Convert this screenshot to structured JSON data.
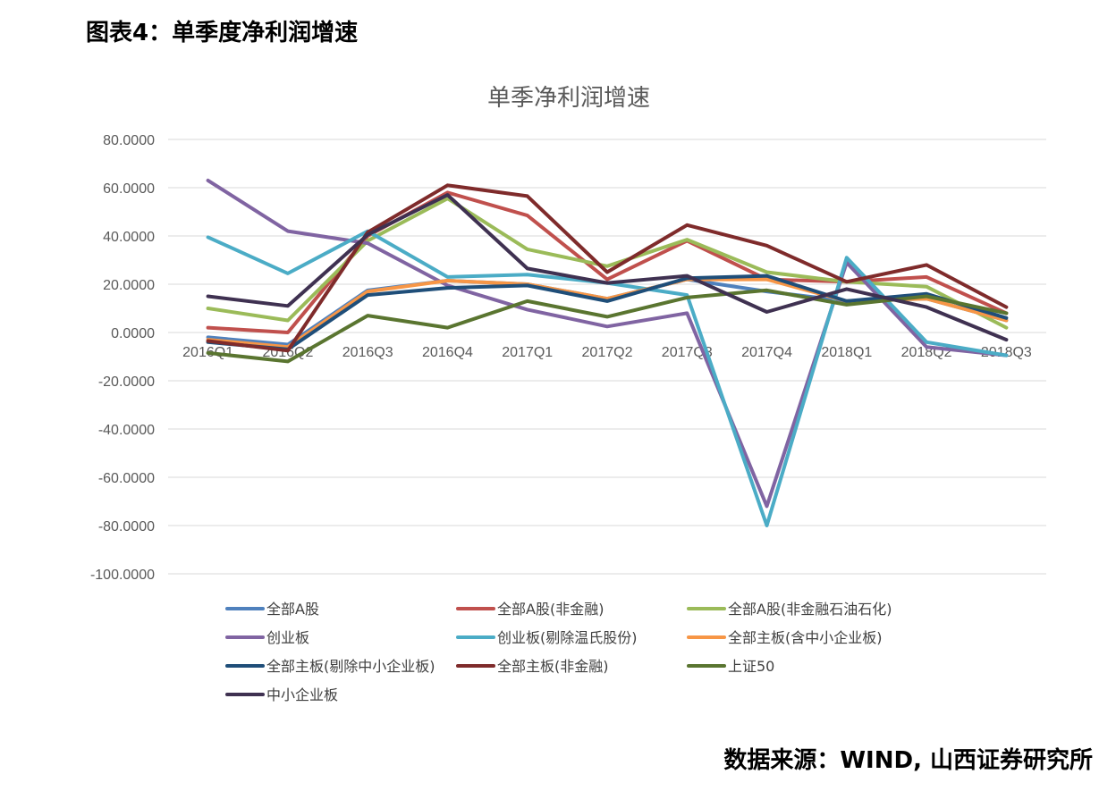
{
  "figure": {
    "title": "图表4：单季度净利润增速",
    "source": "数据来源：WIND, 山西证券研究所"
  },
  "chart_data": {
    "type": "line",
    "title": "单季净利润增速",
    "xlabel": "",
    "ylabel": "",
    "ylim": [
      -100,
      80
    ],
    "yticks": [
      80,
      60,
      40,
      20,
      0,
      -20,
      -40,
      -60,
      -80,
      -100
    ],
    "ytick_labels": [
      "80.0000",
      "60.0000",
      "40.0000",
      "20.0000",
      "0.0000",
      "-20.0000",
      "-40.0000",
      "-60.0000",
      "-80.0000",
      "-100.0000"
    ],
    "grid": true,
    "legend_position": "bottom",
    "categories": [
      "2016Q1",
      "2016Q2",
      "2016Q3",
      "2016Q4",
      "2017Q1",
      "2017Q2",
      "2017Q3",
      "2017Q4",
      "2018Q1",
      "2018Q2",
      "2018Q3"
    ],
    "series": [
      {
        "name": "全部A股",
        "color": "#4F81BD",
        "values": [
          -2,
          -5,
          17.5,
          21.5,
          20,
          14,
          22,
          17,
          13,
          14,
          5
        ]
      },
      {
        "name": "全部A股(非金融)",
        "color": "#C0504D",
        "values": [
          2,
          0,
          40,
          58,
          48.5,
          22,
          38,
          22,
          21,
          23,
          8
        ]
      },
      {
        "name": "全部A股(非金融石油石化)",
        "color": "#9BBB59",
        "values": [
          10,
          5,
          38,
          55.5,
          34.5,
          27.5,
          38.5,
          25,
          21,
          19,
          2
        ]
      },
      {
        "name": "创业板",
        "color": "#8064A2",
        "values": [
          63,
          42,
          37,
          19.5,
          9.5,
          2.5,
          8,
          -72,
          29,
          -6,
          -9.5
        ]
      },
      {
        "name": "创业板(剔除温氏股份)",
        "color": "#4BACC6",
        "values": [
          39.5,
          24.5,
          42,
          23,
          24,
          20.5,
          15.5,
          -80,
          31,
          -4,
          -9.5
        ]
      },
      {
        "name": "全部主板(含中小企业板)",
        "color": "#F79646",
        "values": [
          -3,
          -6,
          17,
          21.5,
          20,
          14,
          22,
          22,
          13,
          14,
          5
        ]
      },
      {
        "name": "全部主板(剔除中小企业板)",
        "color": "#1F4E79",
        "values": [
          -4,
          -7,
          15.5,
          18.5,
          19.5,
          13,
          22.5,
          23.5,
          13,
          16,
          6
        ]
      },
      {
        "name": "全部主板(非金融)",
        "color": "#7F2B2B",
        "values": [
          -3.5,
          -7.5,
          41.5,
          61,
          56.5,
          25,
          44.5,
          36,
          21,
          28,
          10.5
        ]
      },
      {
        "name": "上证50",
        "color": "#5A7530",
        "values": [
          -8.5,
          -12,
          7,
          2,
          13,
          6.5,
          14.5,
          17.5,
          11.5,
          15,
          8
        ]
      },
      {
        "name": "中小企业板",
        "color": "#3F3151",
        "values": [
          15,
          11,
          40.5,
          57,
          26.5,
          20.5,
          23.5,
          8.5,
          18,
          10.5,
          -3
        ]
      }
    ]
  }
}
